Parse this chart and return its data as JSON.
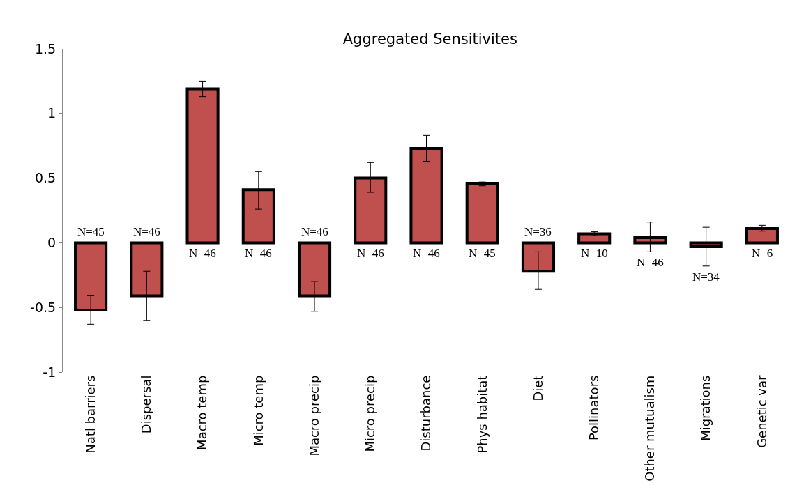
{
  "chart_data": {
    "type": "bar",
    "title": "Aggregated Sensitivites",
    "categories": [
      "Natl barriers",
      "Dispersal",
      "Macro temp",
      "Micro temp",
      "Macro precip",
      "Micro precip",
      "Disturbance",
      "Phys habitat",
      "Diet",
      "Pollinators",
      "Other mutualism",
      "Migrations",
      "Genetic var"
    ],
    "values": [
      -0.52,
      -0.41,
      1.19,
      0.41,
      -0.41,
      0.5,
      0.73,
      0.46,
      -0.22,
      0.07,
      0.04,
      -0.03,
      0.11
    ],
    "errors": [
      [
        -0.63,
        -0.41
      ],
      [
        -0.6,
        -0.22
      ],
      [
        1.13,
        1.25
      ],
      [
        0.26,
        0.55
      ],
      [
        -0.53,
        -0.3
      ],
      [
        0.39,
        0.62
      ],
      [
        0.63,
        0.83
      ],
      [
        0.44,
        0.47
      ],
      [
        -0.36,
        -0.07
      ],
      [
        0.055,
        0.085
      ],
      [
        -0.07,
        0.16
      ],
      [
        -0.18,
        0.12
      ],
      [
        0.09,
        0.135
      ]
    ],
    "color": "#c0504d",
    "ylim": [
      -1,
      1.5
    ],
    "yticks": [
      -1,
      -0.5,
      0,
      0.5,
      1,
      1.5
    ],
    "grid": false,
    "annotations": [
      "N=45",
      "N=46",
      "N=46",
      "N=46",
      "N=46",
      "N=46",
      "N=46",
      "N=45",
      "N=36",
      "N=10",
      "N=46",
      "N=34",
      "N=6"
    ]
  }
}
